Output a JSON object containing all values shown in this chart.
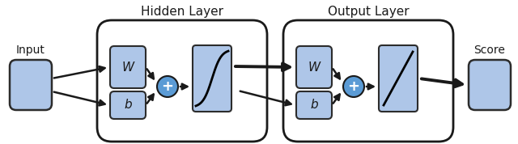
{
  "fig_width": 6.4,
  "fig_height": 1.78,
  "dpi": 100,
  "bg_color": "#ffffff",
  "box_fill": "#aec6e8",
  "box_edge": "#2c2c2c",
  "outer_box_fill": "#ffffff",
  "outer_box_edge": "#1a1a1a",
  "circle_fill": "#5b9bd5",
  "circle_edge": "#1a1a1a",
  "arrow_color": "#1a1a1a",
  "text_color": "#1a1a1a",
  "title_fontsize": 11,
  "label_fontsize": 10,
  "symbol_fontsize": 11,
  "input_label": "Input",
  "score_label": "Score",
  "hidden_label": "Hidden Layer",
  "output_label": "Output Layer",
  "W_label": "W",
  "b_label": "b",
  "plus_label": "+"
}
